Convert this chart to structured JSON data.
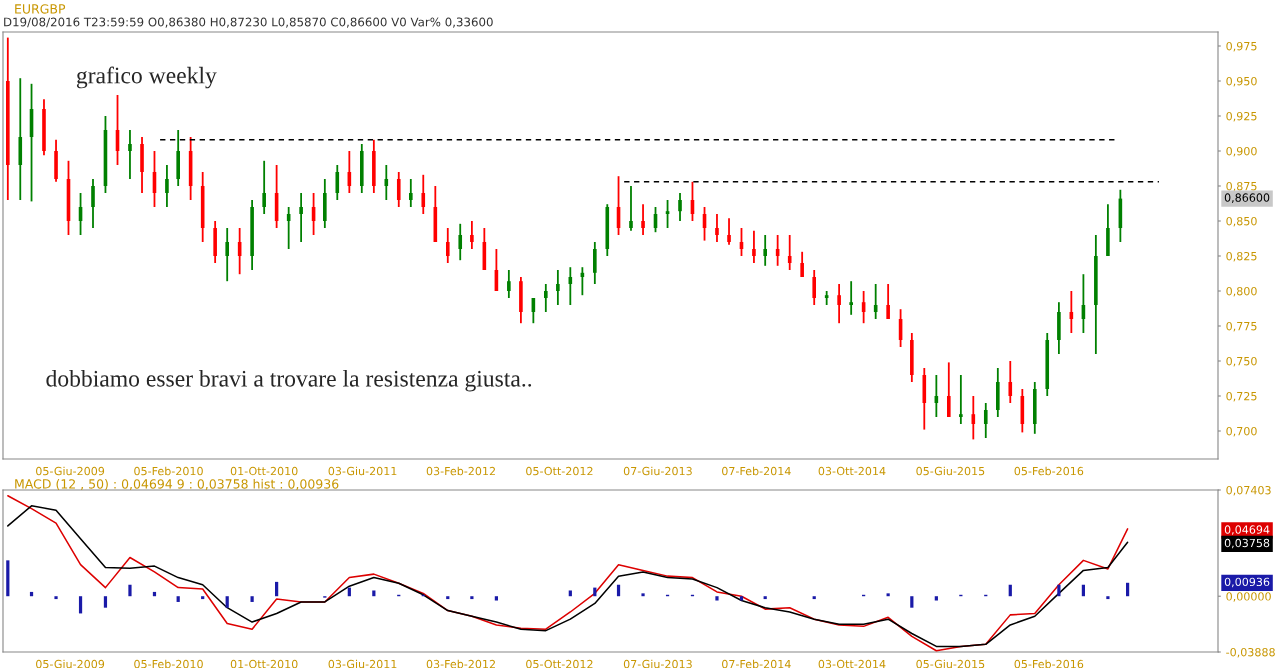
{
  "chart_data": [
    {
      "type": "candlestick",
      "title": "EURGBP",
      "subtitle": "D19/08/2016 T23:59:59 O0,86380 H0,87230 L0,85870 C0,86600 V0 Var% 0,33600",
      "annotations": [
        "grafico weekly",
        "dobbiamo esser bravi a trovare la resistenza giusta..",
        "0,86600"
      ],
      "xlim": [
        "2008-12-20",
        "2017-04-01"
      ],
      "xticks": [
        {
          "value": "2009-06-05",
          "label": "05-Giu-2009"
        },
        {
          "value": "2010-02-05",
          "label": "05-Feb-2010"
        },
        {
          "value": "2010-10-01",
          "label": "01-Ott-2010"
        },
        {
          "value": "2011-06-03",
          "label": "03-Giu-2011"
        },
        {
          "value": "2012-02-03",
          "label": "03-Feb-2012"
        },
        {
          "value": "2012-10-05",
          "label": "05-Ott-2012"
        },
        {
          "value": "2013-06-07",
          "label": "07-Giu-2013"
        },
        {
          "value": "2014-02-07",
          "label": "07-Feb-2014"
        },
        {
          "value": "2014-10-03",
          "label": "03-Ott-2014"
        },
        {
          "value": "2015-06-05",
          "label": "05-Giu-2015"
        },
        {
          "value": "2016-02-05",
          "label": "05-Feb-2016"
        }
      ],
      "ylim": [
        0.68,
        0.985
      ],
      "yticks": [
        {
          "value": 0.7,
          "label": "0,700"
        },
        {
          "value": 0.725,
          "label": "0,725"
        },
        {
          "value": 0.75,
          "label": "0,750"
        },
        {
          "value": 0.775,
          "label": "0,775"
        },
        {
          "value": 0.8,
          "label": "0,800"
        },
        {
          "value": 0.825,
          "label": "0,825"
        },
        {
          "value": 0.85,
          "label": "0,850"
        },
        {
          "value": 0.875,
          "label": "0,875"
        },
        {
          "value": 0.9,
          "label": "0,900"
        },
        {
          "value": 0.925,
          "label": "0,925"
        },
        {
          "value": 0.95,
          "label": "0,950"
        },
        {
          "value": 0.975,
          "label": "0,975"
        }
      ],
      "series": [
        {
          "x": [
            "2009-01",
            "2009-02",
            "2009-03",
            "2009-04",
            "2009-05",
            "2009-06",
            "2009-07",
            "2009-08",
            "2009-09",
            "2009-10",
            "2009-11",
            "2009-12",
            "2010-01",
            "2010-02",
            "2010-03",
            "2010-04",
            "2010-05",
            "2010-06",
            "2010-07",
            "2010-08",
            "2010-09",
            "2010-10",
            "2010-11",
            "2010-12",
            "2011-01",
            "2011-02",
            "2011-03",
            "2011-04",
            "2011-05",
            "2011-06",
            "2011-07",
            "2011-08",
            "2011-09",
            "2011-10",
            "2011-11",
            "2011-12",
            "2012-01",
            "2012-02",
            "2012-03",
            "2012-04",
            "2012-05",
            "2012-06",
            "2012-07",
            "2012-08",
            "2012-09",
            "2012-10",
            "2012-11",
            "2012-12",
            "2013-01",
            "2013-02",
            "2013-03",
            "2013-04",
            "2013-05",
            "2013-06",
            "2013-07",
            "2013-08",
            "2013-09",
            "2013-10",
            "2013-11",
            "2013-12",
            "2014-01",
            "2014-02",
            "2014-03",
            "2014-04",
            "2014-05",
            "2014-06",
            "2014-07",
            "2014-08",
            "2014-09",
            "2014-10",
            "2014-11",
            "2014-12",
            "2015-01",
            "2015-02",
            "2015-03",
            "2015-04",
            "2015-05",
            "2015-06",
            "2015-07",
            "2015-08",
            "2015-09",
            "2015-10",
            "2015-11",
            "2015-12",
            "2016-01",
            "2016-02",
            "2016-03",
            "2016-04",
            "2016-05",
            "2016-06",
            "2016-07",
            "2016-08"
          ],
          "ohlc": [
            [
              0.95,
              0.981,
              0.865,
              0.89
            ],
            [
              0.89,
              0.952,
              0.865,
              0.91
            ],
            [
              0.91,
              0.948,
              0.864,
              0.93
            ],
            [
              0.93,
              0.937,
              0.897,
              0.9
            ],
            [
              0.9,
              0.908,
              0.878,
              0.88
            ],
            [
              0.88,
              0.893,
              0.84,
              0.85
            ],
            [
              0.85,
              0.87,
              0.84,
              0.86
            ],
            [
              0.86,
              0.88,
              0.845,
              0.875
            ],
            [
              0.875,
              0.925,
              0.87,
              0.915
            ],
            [
              0.915,
              0.94,
              0.89,
              0.9
            ],
            [
              0.9,
              0.915,
              0.88,
              0.905
            ],
            [
              0.905,
              0.91,
              0.87,
              0.885
            ],
            [
              0.885,
              0.9,
              0.86,
              0.87
            ],
            [
              0.87,
              0.89,
              0.86,
              0.88
            ],
            [
              0.88,
              0.915,
              0.875,
              0.9
            ],
            [
              0.9,
              0.91,
              0.865,
              0.875
            ],
            [
              0.875,
              0.885,
              0.835,
              0.845
            ],
            [
              0.845,
              0.85,
              0.82,
              0.825
            ],
            [
              0.825,
              0.845,
              0.807,
              0.835
            ],
            [
              0.835,
              0.845,
              0.812,
              0.825
            ],
            [
              0.825,
              0.865,
              0.815,
              0.86
            ],
            [
              0.86,
              0.893,
              0.855,
              0.87
            ],
            [
              0.87,
              0.89,
              0.845,
              0.85
            ],
            [
              0.85,
              0.86,
              0.83,
              0.855
            ],
            [
              0.855,
              0.87,
              0.835,
              0.86
            ],
            [
              0.86,
              0.87,
              0.84,
              0.85
            ],
            [
              0.85,
              0.88,
              0.845,
              0.87
            ],
            [
              0.87,
              0.89,
              0.865,
              0.885
            ],
            [
              0.885,
              0.9,
              0.87,
              0.875
            ],
            [
              0.875,
              0.905,
              0.87,
              0.9
            ],
            [
              0.9,
              0.908,
              0.87,
              0.875
            ],
            [
              0.875,
              0.89,
              0.865,
              0.88
            ],
            [
              0.88,
              0.885,
              0.86,
              0.865
            ],
            [
              0.865,
              0.88,
              0.86,
              0.87
            ],
            [
              0.87,
              0.883,
              0.855,
              0.86
            ],
            [
              0.86,
              0.875,
              0.835,
              0.835
            ],
            [
              0.835,
              0.845,
              0.82,
              0.825
            ],
            [
              0.83,
              0.848,
              0.822,
              0.84
            ],
            [
              0.84,
              0.85,
              0.83,
              0.835
            ],
            [
              0.835,
              0.845,
              0.815,
              0.815
            ],
            [
              0.815,
              0.83,
              0.8,
              0.8
            ],
            [
              0.8,
              0.815,
              0.795,
              0.807
            ],
            [
              0.807,
              0.81,
              0.777,
              0.785
            ],
            [
              0.785,
              0.795,
              0.777,
              0.795
            ],
            [
              0.795,
              0.805,
              0.785,
              0.8
            ],
            [
              0.8,
              0.815,
              0.79,
              0.805
            ],
            [
              0.805,
              0.817,
              0.79,
              0.81
            ],
            [
              0.81,
              0.817,
              0.797,
              0.813
            ],
            [
              0.813,
              0.835,
              0.805,
              0.83
            ],
            [
              0.83,
              0.862,
              0.825,
              0.86
            ],
            [
              0.86,
              0.882,
              0.84,
              0.845
            ],
            [
              0.845,
              0.875,
              0.843,
              0.85
            ],
            [
              0.85,
              0.862,
              0.84,
              0.845
            ],
            [
              0.845,
              0.86,
              0.842,
              0.855
            ],
            [
              0.855,
              0.865,
              0.845,
              0.857
            ],
            [
              0.857,
              0.87,
              0.85,
              0.865
            ],
            [
              0.865,
              0.878,
              0.85,
              0.855
            ],
            [
              0.855,
              0.86,
              0.836,
              0.845
            ],
            [
              0.845,
              0.855,
              0.835,
              0.84
            ],
            [
              0.84,
              0.852,
              0.833,
              0.835
            ],
            [
              0.835,
              0.845,
              0.825,
              0.83
            ],
            [
              0.83,
              0.843,
              0.82,
              0.825
            ],
            [
              0.825,
              0.84,
              0.818,
              0.83
            ],
            [
              0.83,
              0.84,
              0.818,
              0.825
            ],
            [
              0.825,
              0.84,
              0.815,
              0.82
            ],
            [
              0.82,
              0.828,
              0.81,
              0.81
            ],
            [
              0.81,
              0.815,
              0.79,
              0.795
            ],
            [
              0.795,
              0.8,
              0.79,
              0.797
            ],
            [
              0.797,
              0.805,
              0.777,
              0.79
            ],
            [
              0.79,
              0.807,
              0.783,
              0.792
            ],
            [
              0.792,
              0.8,
              0.777,
              0.785
            ],
            [
              0.785,
              0.805,
              0.78,
              0.79
            ],
            [
              0.79,
              0.805,
              0.78,
              0.78
            ],
            [
              0.78,
              0.787,
              0.76,
              0.765
            ],
            [
              0.765,
              0.77,
              0.735,
              0.74
            ],
            [
              0.74,
              0.745,
              0.701,
              0.72
            ],
            [
              0.72,
              0.74,
              0.71,
              0.725
            ],
            [
              0.725,
              0.749,
              0.71,
              0.71
            ],
            [
              0.71,
              0.74,
              0.705,
              0.712
            ],
            [
              0.712,
              0.725,
              0.694,
              0.705
            ],
            [
              0.705,
              0.72,
              0.695,
              0.715
            ],
            [
              0.715,
              0.745,
              0.71,
              0.735
            ],
            [
              0.735,
              0.75,
              0.72,
              0.725
            ],
            [
              0.725,
              0.73,
              0.699,
              0.705
            ],
            [
              0.705,
              0.735,
              0.698,
              0.73
            ],
            [
              0.73,
              0.77,
              0.725,
              0.765
            ],
            [
              0.765,
              0.792,
              0.755,
              0.785
            ],
            [
              0.785,
              0.8,
              0.77,
              0.78
            ],
            [
              0.78,
              0.812,
              0.77,
              0.79
            ],
            [
              0.79,
              0.84,
              0.755,
              0.825
            ],
            [
              0.825,
              0.862,
              0.825,
              0.845
            ],
            [
              0.845,
              0.8723,
              0.835,
              0.866
            ]
          ],
          "colors": [
            "#ff0000",
            "#008000",
            "#008000",
            "#ff0000",
            "#ff0000",
            "#ff0000",
            "#008000",
            "#008000",
            "#008000",
            "#ff0000",
            "#008000",
            "#ff0000",
            "#ff0000",
            "#008000",
            "#008000",
            "#ff0000",
            "#ff0000",
            "#ff0000",
            "#008000",
            "#ff0000",
            "#008000",
            "#008000",
            "#ff0000",
            "#008000",
            "#008000",
            "#ff0000",
            "#008000",
            "#008000",
            "#ff0000",
            "#008000",
            "#ff0000",
            "#008000",
            "#ff0000",
            "#008000",
            "#ff0000",
            "#ff0000",
            "#ff0000",
            "#008000",
            "#ff0000",
            "#ff0000",
            "#ff0000",
            "#008000",
            "#ff0000",
            "#008000",
            "#008000",
            "#008000",
            "#008000",
            "#008000",
            "#008000",
            "#008000",
            "#ff0000",
            "#008000",
            "#ff0000",
            "#008000",
            "#008000",
            "#008000",
            "#ff0000",
            "#ff0000",
            "#ff0000",
            "#ff0000",
            "#ff0000",
            "#ff0000",
            "#008000",
            "#ff0000",
            "#ff0000",
            "#ff0000",
            "#ff0000",
            "#008000",
            "#ff0000",
            "#008000",
            "#ff0000",
            "#008000",
            "#ff0000",
            "#ff0000",
            "#ff0000",
            "#ff0000",
            "#008000",
            "#ff0000",
            "#008000",
            "#ff0000",
            "#008000",
            "#008000",
            "#ff0000",
            "#ff0000",
            "#008000",
            "#008000",
            "#008000",
            "#ff0000",
            "#008000",
            "#008000",
            "#008000",
            "#008000"
          ]
        },
        {
          "type": "line",
          "color": "#000000",
          "line_style": "dashed",
          "x": [
            "2010-01-15",
            "2016-07-25"
          ],
          "values": [
            0.908,
            0.908
          ]
        },
        {
          "type": "line",
          "color": "#000000",
          "line_style": "dashed",
          "x": [
            "2013-03-15",
            "2016-11-05"
          ],
          "values": [
            0.878,
            0.878
          ]
        }
      ]
    },
    {
      "type": "line",
      "title": "MACD (12 , 50) : 0,04694 9 : 0,03758 hist : 0,00936",
      "annotations": [
        "0,04694",
        "0,03758",
        "0,00936"
      ],
      "xlim": [
        "2008-12-20",
        "2017-04-01"
      ],
      "xticks": [
        {
          "value": "2009-06-05",
          "label": "05-Giu-2009"
        },
        {
          "value": "2010-02-05",
          "label": "05-Feb-2010"
        },
        {
          "value": "2010-10-01",
          "label": "01-Ott-2010"
        },
        {
          "value": "2011-06-03",
          "label": "03-Giu-2011"
        },
        {
          "value": "2012-02-03",
          "label": "03-Feb-2012"
        },
        {
          "value": "2012-10-05",
          "label": "05-Ott-2012"
        },
        {
          "value": "2013-06-07",
          "label": "07-Giu-2013"
        },
        {
          "value": "2014-02-07",
          "label": "07-Feb-2014"
        },
        {
          "value": "2014-10-03",
          "label": "03-Ott-2014"
        },
        {
          "value": "2015-06-05",
          "label": "05-Giu-2015"
        },
        {
          "value": "2016-02-05",
          "label": "05-Feb-2016"
        }
      ],
      "ylim": [
        -0.03888,
        0.07403
      ],
      "yticks": [
        {
          "value": -0.03888,
          "label": "-0,03888"
        },
        {
          "value": 0.0,
          "label": "0,00000"
        },
        {
          "value": 0.07403,
          "label": "0,07403"
        }
      ],
      "series": [
        {
          "color": "#dd0000",
          "x": [
            "2009-01",
            "2009-03",
            "2009-05",
            "2009-07",
            "2009-09",
            "2009-11",
            "2010-01",
            "2010-03",
            "2010-05",
            "2010-07",
            "2010-09",
            "2010-11",
            "2011-01",
            "2011-03",
            "2011-05",
            "2011-07",
            "2011-09",
            "2011-11",
            "2012-01",
            "2012-03",
            "2012-05",
            "2012-07",
            "2012-09",
            "2012-11",
            "2013-01",
            "2013-03",
            "2013-05",
            "2013-07",
            "2013-09",
            "2013-11",
            "2014-01",
            "2014-03",
            "2014-05",
            "2014-07",
            "2014-09",
            "2014-11",
            "2015-01",
            "2015-03",
            "2015-05",
            "2015-07",
            "2015-09",
            "2015-11",
            "2016-01",
            "2016-03",
            "2016-05",
            "2016-07",
            "2016-08-19"
          ],
          "values": [
            0.07,
            0.061,
            0.051,
            0.022,
            0.006,
            0.027,
            0.017,
            0.006,
            0.005,
            -0.019,
            -0.023,
            -0.002,
            -0.004,
            -0.004,
            0.013,
            0.0154,
            0.009,
            0.002,
            -0.01,
            -0.014,
            -0.02,
            -0.0223,
            -0.023,
            -0.011,
            0.002,
            0.022,
            0.018,
            0.014,
            0.013,
            0.003,
            0.0,
            -0.009,
            -0.008,
            -0.016,
            -0.02,
            -0.021,
            -0.0147,
            -0.028,
            -0.038,
            -0.035,
            -0.0335,
            -0.013,
            -0.012,
            0.008,
            0.025,
            0.019,
            0.04694
          ]
        },
        {
          "color": "#000000",
          "x": [
            "2009-01",
            "2009-03",
            "2009-05",
            "2009-07",
            "2009-09",
            "2009-11",
            "2010-01",
            "2010-03",
            "2010-05",
            "2010-07",
            "2010-09",
            "2010-11",
            "2011-01",
            "2011-03",
            "2011-05",
            "2011-07",
            "2011-09",
            "2011-11",
            "2012-01",
            "2012-03",
            "2012-05",
            "2012-07",
            "2012-09",
            "2012-11",
            "2013-01",
            "2013-03",
            "2013-05",
            "2013-07",
            "2013-09",
            "2013-11",
            "2014-01",
            "2014-03",
            "2014-05",
            "2014-07",
            "2014-09",
            "2014-11",
            "2015-01",
            "2015-03",
            "2015-05",
            "2015-07",
            "2015-09",
            "2015-11",
            "2016-01",
            "2016-03",
            "2016-05",
            "2016-07",
            "2016-08-19"
          ],
          "values": [
            0.049,
            0.063,
            0.06,
            0.04,
            0.02,
            0.0195,
            0.021,
            0.013,
            0.008,
            -0.008,
            -0.018,
            -0.012,
            -0.004,
            -0.004,
            0.007,
            0.013,
            0.009,
            0.001,
            -0.01,
            -0.014,
            -0.018,
            -0.023,
            -0.024,
            -0.016,
            -0.005,
            0.014,
            0.0168,
            0.013,
            0.012,
            0.006,
            -0.003,
            -0.008,
            -0.011,
            -0.016,
            -0.0195,
            -0.0195,
            -0.016,
            -0.026,
            -0.035,
            -0.035,
            -0.0335,
            -0.02,
            -0.014,
            0.002,
            0.018,
            0.02,
            0.03758
          ]
        },
        {
          "type": "bar",
          "color": "#1a1aa8",
          "x": [
            "2009-01",
            "2009-03",
            "2009-05",
            "2009-07",
            "2009-09",
            "2009-11",
            "2010-01",
            "2010-03",
            "2010-05",
            "2010-07",
            "2010-09",
            "2010-11",
            "2011-01",
            "2011-03",
            "2011-05",
            "2011-07",
            "2011-09",
            "2011-11",
            "2012-01",
            "2012-03",
            "2012-05",
            "2012-07",
            "2012-09",
            "2012-11",
            "2013-01",
            "2013-03",
            "2013-05",
            "2013-07",
            "2013-09",
            "2013-11",
            "2014-01",
            "2014-03",
            "2014-05",
            "2014-07",
            "2014-09",
            "2014-11",
            "2015-01",
            "2015-03",
            "2015-05",
            "2015-07",
            "2015-09",
            "2015-11",
            "2016-01",
            "2016-03",
            "2016-05",
            "2016-07",
            "2016-08-19"
          ],
          "values": [
            0.025,
            0.003,
            -0.002,
            -0.012,
            -0.008,
            0.008,
            0.003,
            -0.004,
            -0.002,
            -0.008,
            -0.004,
            0.01,
            0.0,
            -0.001,
            0.006,
            0.004,
            0.001,
            0.001,
            -0.002,
            -0.002,
            -0.003,
            0.0,
            0.0,
            0.004,
            0.006,
            0.008,
            0.002,
            0.001,
            0.001,
            -0.003,
            -0.003,
            -0.002,
            0.0,
            -0.002,
            0.0,
            0.001,
            0.002,
            -0.008,
            -0.003,
            0.001,
            0.001,
            0.008,
            0.0,
            0.008,
            0.008,
            -0.002,
            0.00936
          ]
        }
      ]
    }
  ]
}
